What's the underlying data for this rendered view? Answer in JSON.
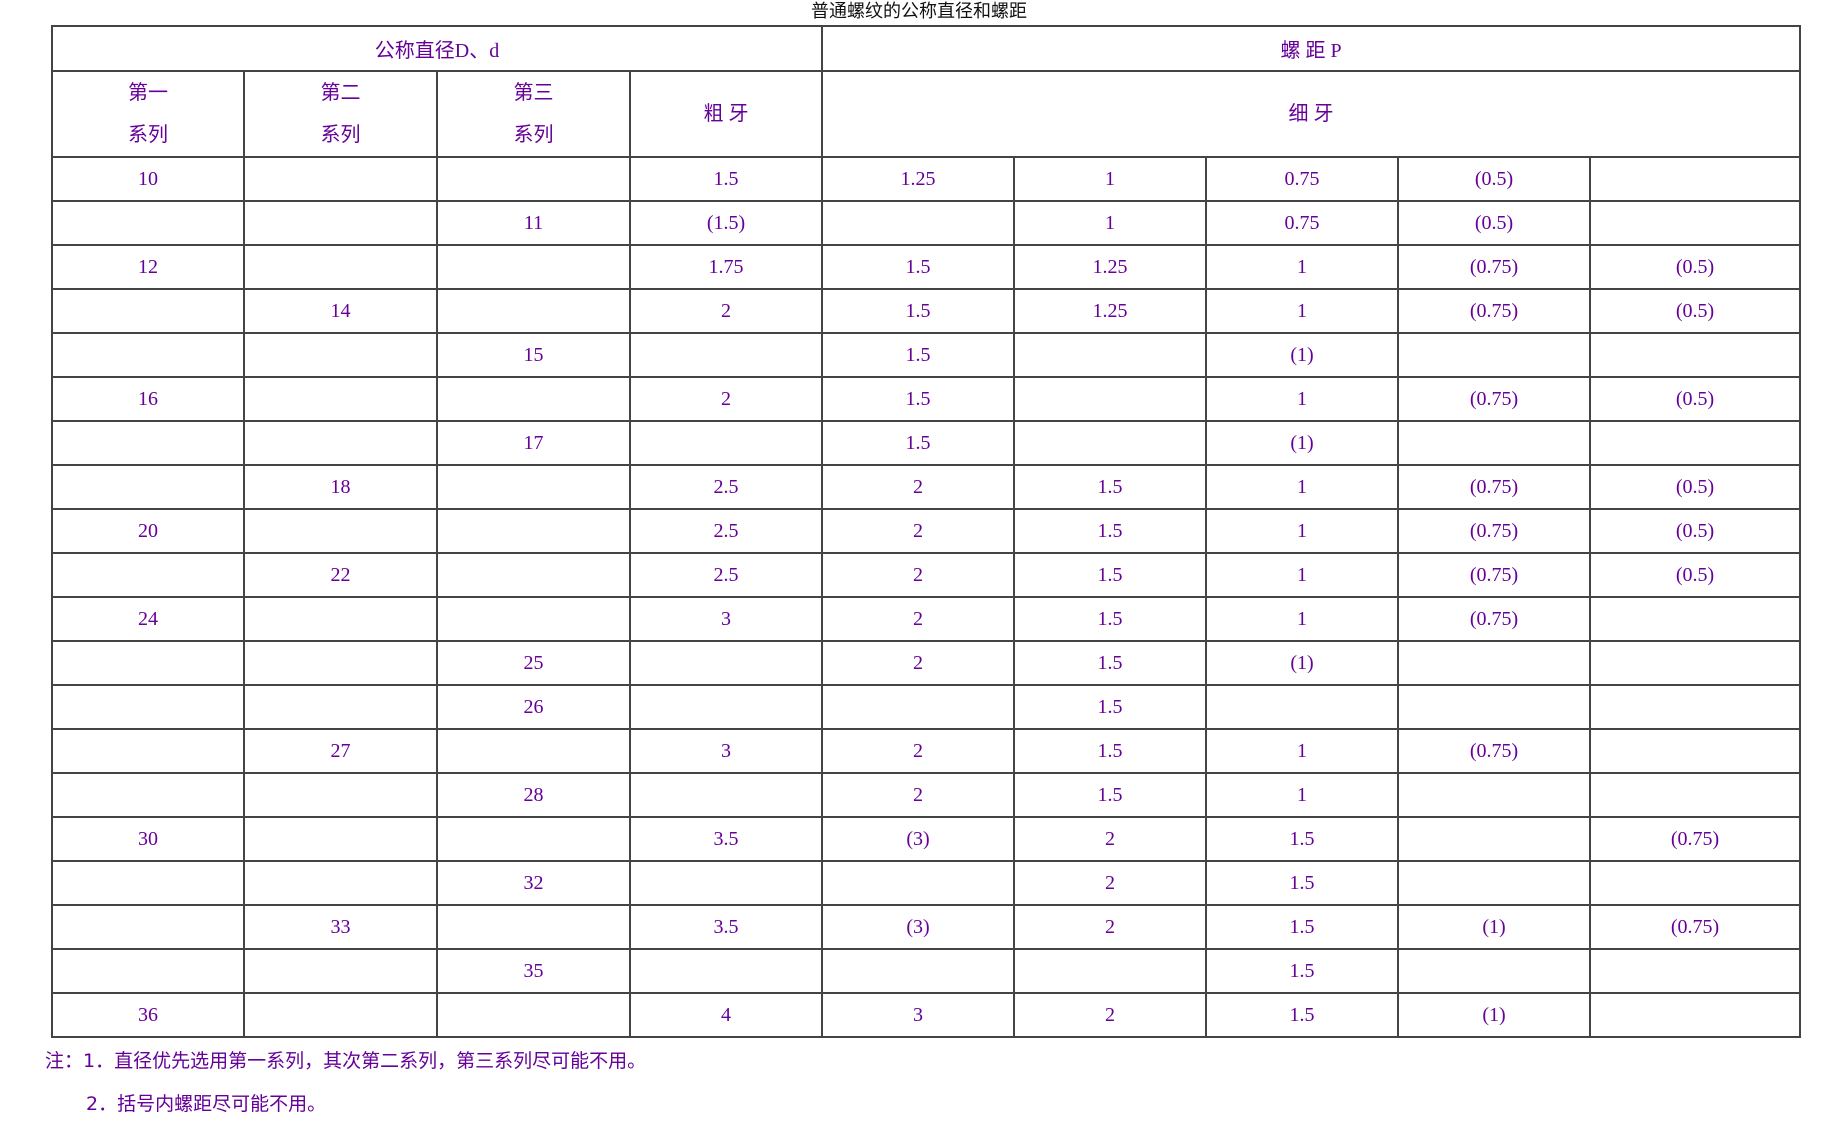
{
  "title": "普通螺纹的公称直径和螺距",
  "header": {
    "nominal_diameter": "公称直径D、d",
    "pitch": "螺 距 P",
    "series1_a": "第一",
    "series1_b": "系列",
    "series2_a": "第二",
    "series2_b": "系列",
    "series3_a": "第三",
    "series3_b": "系列",
    "coarse": "粗 牙",
    "fine": "细 牙"
  },
  "rows": [
    [
      "10",
      "",
      "",
      "1.5",
      "1.25",
      "1",
      "0.75",
      "(0.5)",
      ""
    ],
    [
      "",
      "",
      "11",
      "(1.5)",
      "",
      "1",
      "0.75",
      "(0.5)",
      ""
    ],
    [
      "12",
      "",
      "",
      "1.75",
      "1.5",
      "1.25",
      "1",
      "(0.75)",
      "(0.5)"
    ],
    [
      "",
      "14",
      "",
      "2",
      "1.5",
      "1.25",
      "1",
      "(0.75)",
      "(0.5)"
    ],
    [
      "",
      "",
      "15",
      "",
      "1.5",
      "",
      "(1)",
      "",
      ""
    ],
    [
      "16",
      "",
      "",
      "2",
      "1.5",
      "",
      "1",
      "(0.75)",
      "(0.5)"
    ],
    [
      "",
      "",
      "17",
      "",
      "1.5",
      "",
      "(1)",
      "",
      ""
    ],
    [
      "",
      "18",
      "",
      "2.5",
      "2",
      "1.5",
      "1",
      "(0.75)",
      "(0.5)"
    ],
    [
      "20",
      "",
      "",
      "2.5",
      "2",
      "1.5",
      "1",
      "(0.75)",
      "(0.5)"
    ],
    [
      "",
      "22",
      "",
      "2.5",
      "2",
      "1.5",
      "1",
      "(0.75)",
      "(0.5)"
    ],
    [
      "24",
      "",
      "",
      "3",
      "2",
      "1.5",
      "1",
      "(0.75)",
      ""
    ],
    [
      "",
      "",
      "25",
      "",
      "2",
      "1.5",
      "(1)",
      "",
      ""
    ],
    [
      "",
      "",
      "26",
      "",
      "",
      "1.5",
      "",
      "",
      ""
    ],
    [
      "",
      "27",
      "",
      "3",
      "2",
      "1.5",
      "1",
      "(0.75)",
      ""
    ],
    [
      "",
      "",
      "28",
      "",
      "2",
      "1.5",
      "1",
      "",
      ""
    ],
    [
      "30",
      "",
      "",
      "3.5",
      "(3)",
      "2",
      "1.5",
      "",
      "(0.75)"
    ],
    [
      "",
      "",
      "32",
      "",
      "",
      "2",
      "1.5",
      "",
      ""
    ],
    [
      "",
      "33",
      "",
      "3.5",
      "(3)",
      "2",
      "1.5",
      "(1)",
      "(0.75)"
    ],
    [
      "",
      "",
      "35",
      "",
      "",
      "",
      "1.5",
      "",
      ""
    ],
    [
      "36",
      "",
      "",
      "4",
      "3",
      "2",
      "1.5",
      "(1)",
      ""
    ]
  ],
  "notes": {
    "note1": "注：1．直径优先选用第一系列，其次第二系列，第三系列尽可能不用。",
    "note2": "2．括号内螺距尽可能不用。"
  }
}
